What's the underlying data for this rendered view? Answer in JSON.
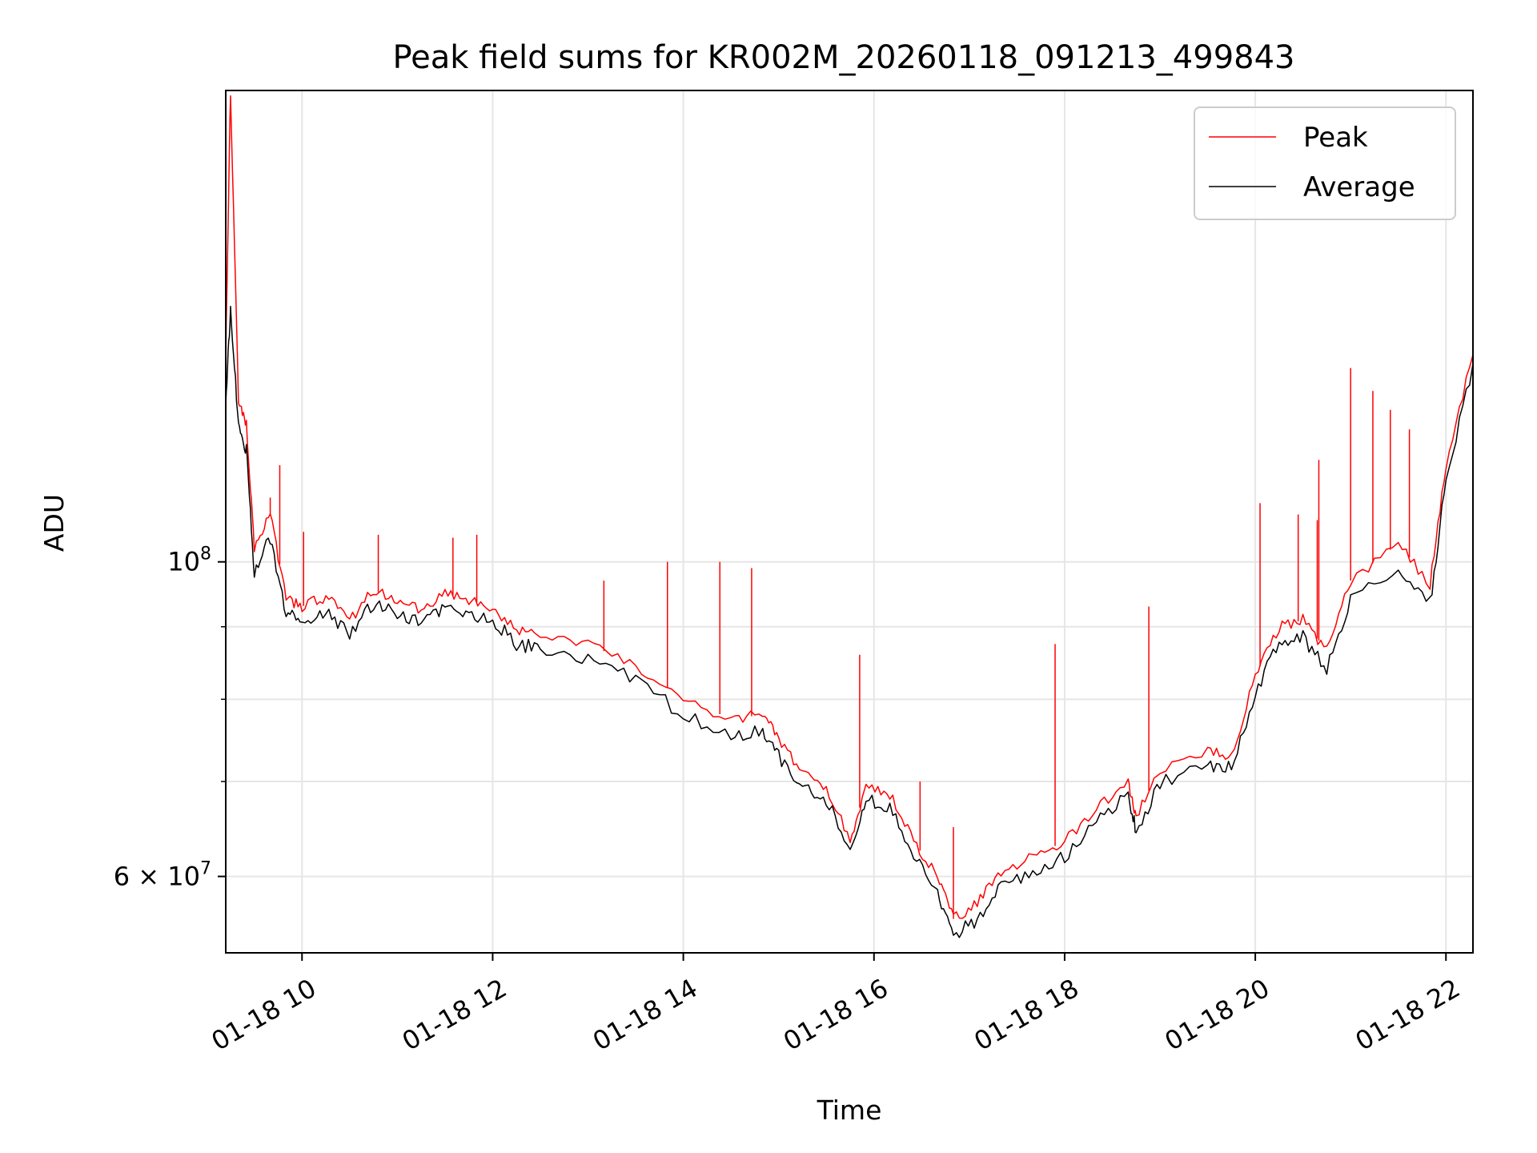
{
  "chart_data": {
    "type": "line",
    "title": "Peak field sums for KR002M_20260118_091213_499843",
    "xlabel": "Time",
    "ylabel": "ADU",
    "y_scale": "log",
    "grid": true,
    "legend_position": "top-right",
    "x_range": [
      "2026-01-18 09:12",
      "2026-01-18 22:17"
    ],
    "ylim": [
      53000000,
      215000000
    ],
    "x_ticks": [
      {
        "time": "2026-01-18 10:00",
        "label": "01-18 10"
      },
      {
        "time": "2026-01-18 12:00",
        "label": "01-18 12"
      },
      {
        "time": "2026-01-18 14:00",
        "label": "01-18 14"
      },
      {
        "time": "2026-01-18 16:00",
        "label": "01-18 16"
      },
      {
        "time": "2026-01-18 18:00",
        "label": "01-18 18"
      },
      {
        "time": "2026-01-18 20:00",
        "label": "01-18 20"
      },
      {
        "time": "2026-01-18 22:00",
        "label": "01-18 22"
      }
    ],
    "y_ticks": [
      {
        "value": 100000000,
        "base": "10",
        "exp": "8"
      },
      {
        "value": 60000000,
        "base": "6 × 10",
        "exp": "7"
      }
    ],
    "y_minor_ticks": [
      70000000,
      80000000,
      90000000
    ],
    "series": [
      {
        "name": "Peak",
        "color": "#ff0000",
        "points": [
          [
            "2026-01-18 09:12",
            140000000
          ],
          [
            "2026-01-18 09:15",
            215000000
          ],
          [
            "2026-01-18 09:20",
            130000000
          ],
          [
            "2026-01-18 09:25",
            125000000
          ],
          [
            "2026-01-18 09:30",
            102000000
          ],
          [
            "2026-01-18 09:40",
            108000000
          ],
          [
            "2026-01-18 09:50",
            94000000
          ],
          [
            "2026-01-18 10:00",
            93000000
          ],
          [
            "2026-01-18 10:15",
            94500000
          ],
          [
            "2026-01-18 10:30",
            91000000
          ],
          [
            "2026-01-18 10:45",
            95500000
          ],
          [
            "2026-01-18 11:00",
            94000000
          ],
          [
            "2026-01-18 11:15",
            92500000
          ],
          [
            "2026-01-18 11:30",
            95000000
          ],
          [
            "2026-01-18 11:45",
            94000000
          ],
          [
            "2026-01-18 12:00",
            93000000
          ],
          [
            "2026-01-18 12:15",
            89500000
          ],
          [
            "2026-01-18 12:30",
            89000000
          ],
          [
            "2026-01-18 13:00",
            87500000
          ],
          [
            "2026-01-18 13:30",
            84500000
          ],
          [
            "2026-01-18 14:00",
            80000000
          ],
          [
            "2026-01-18 14:30",
            77500000
          ],
          [
            "2026-01-18 14:50",
            78000000
          ],
          [
            "2026-01-18 15:00",
            75000000
          ],
          [
            "2026-01-18 15:15",
            71000000
          ],
          [
            "2026-01-18 15:30",
            69500000
          ],
          [
            "2026-01-18 15:45",
            63500000
          ],
          [
            "2026-01-18 15:55",
            69500000
          ],
          [
            "2026-01-18 16:10",
            68500000
          ],
          [
            "2026-01-18 16:25",
            63500000
          ],
          [
            "2026-01-18 16:40",
            60000000
          ],
          [
            "2026-01-18 16:50",
            56000000
          ],
          [
            "2026-01-18 17:05",
            57500000
          ],
          [
            "2026-01-18 17:20",
            60500000
          ],
          [
            "2026-01-18 17:40",
            62000000
          ],
          [
            "2026-01-18 18:00",
            63500000
          ],
          [
            "2026-01-18 18:20",
            67000000
          ],
          [
            "2026-01-18 18:40",
            70000000
          ],
          [
            "2026-01-18 18:45",
            66000000
          ],
          [
            "2026-01-18 19:00",
            71500000
          ],
          [
            "2026-01-18 19:30",
            73500000
          ],
          [
            "2026-01-18 19:45",
            73000000
          ],
          [
            "2026-01-18 20:00",
            83000000
          ],
          [
            "2026-01-18 20:15",
            90000000
          ],
          [
            "2026-01-18 20:30",
            91000000
          ],
          [
            "2026-01-18 20:45",
            86500000
          ],
          [
            "2026-01-18 21:00",
            97000000
          ],
          [
            "2026-01-18 21:30",
            103000000
          ],
          [
            "2026-01-18 21:50",
            96500000
          ],
          [
            "2026-01-18 22:00",
            117000000
          ],
          [
            "2026-01-18 22:17",
            140000000
          ]
        ]
      },
      {
        "name": "Average",
        "color": "#000000",
        "points": [
          [
            "2026-01-18 09:12",
            130000000
          ],
          [
            "2026-01-18 09:15",
            150000000
          ],
          [
            "2026-01-18 09:20",
            125000000
          ],
          [
            "2026-01-18 09:25",
            120000000
          ],
          [
            "2026-01-18 09:30",
            98000000
          ],
          [
            "2026-01-18 09:40",
            104000000
          ],
          [
            "2026-01-18 09:50",
            92000000
          ],
          [
            "2026-01-18 10:00",
            91000000
          ],
          [
            "2026-01-18 10:15",
            92500000
          ],
          [
            "2026-01-18 10:30",
            89000000
          ],
          [
            "2026-01-18 10:45",
            93500000
          ],
          [
            "2026-01-18 11:00",
            92000000
          ],
          [
            "2026-01-18 11:15",
            90500000
          ],
          [
            "2026-01-18 11:30",
            93000000
          ],
          [
            "2026-01-18 11:45",
            92000000
          ],
          [
            "2026-01-18 12:00",
            91000000
          ],
          [
            "2026-01-18 12:15",
            87500000
          ],
          [
            "2026-01-18 12:30",
            87000000
          ],
          [
            "2026-01-18 13:00",
            85500000
          ],
          [
            "2026-01-18 13:30",
            82500000
          ],
          [
            "2026-01-18 14:00",
            78000000
          ],
          [
            "2026-01-18 14:30",
            75500000
          ],
          [
            "2026-01-18 14:50",
            76000000
          ],
          [
            "2026-01-18 15:00",
            73000000
          ],
          [
            "2026-01-18 15:15",
            69500000
          ],
          [
            "2026-01-18 15:30",
            68000000
          ],
          [
            "2026-01-18 15:45",
            62500000
          ],
          [
            "2026-01-18 15:55",
            68000000
          ],
          [
            "2026-01-18 16:10",
            67000000
          ],
          [
            "2026-01-18 16:25",
            62000000
          ],
          [
            "2026-01-18 16:40",
            58500000
          ],
          [
            "2026-01-18 16:50",
            54500000
          ],
          [
            "2026-01-18 17:05",
            56000000
          ],
          [
            "2026-01-18 17:20",
            59000000
          ],
          [
            "2026-01-18 17:40",
            60500000
          ],
          [
            "2026-01-18 18:00",
            62000000
          ],
          [
            "2026-01-18 18:20",
            65500000
          ],
          [
            "2026-01-18 18:40",
            68500000
          ],
          [
            "2026-01-18 18:45",
            64500000
          ],
          [
            "2026-01-18 19:00",
            70000000
          ],
          [
            "2026-01-18 19:30",
            72000000
          ],
          [
            "2026-01-18 19:45",
            71500000
          ],
          [
            "2026-01-18 20:00",
            81000000
          ],
          [
            "2026-01-18 20:15",
            87500000
          ],
          [
            "2026-01-18 20:30",
            88500000
          ],
          [
            "2026-01-18 20:45",
            84000000
          ],
          [
            "2026-01-18 21:00",
            94000000
          ],
          [
            "2026-01-18 21:30",
            99000000
          ],
          [
            "2026-01-18 21:50",
            93500000
          ],
          [
            "2026-01-18 22:00",
            114000000
          ],
          [
            "2026-01-18 22:17",
            138000000
          ]
        ]
      }
    ],
    "peak_spikes": [
      [
        "2026-01-18 09:40",
        111000000
      ],
      [
        "2026-01-18 09:46",
        117000000
      ],
      [
        "2026-01-18 10:01",
        105000000
      ],
      [
        "2026-01-18 10:48",
        104500000
      ],
      [
        "2026-01-18 11:35",
        104000000
      ],
      [
        "2026-01-18 11:50",
        104500000
      ],
      [
        "2026-01-18 13:10",
        97000000
      ],
      [
        "2026-01-18 13:50",
        100000000
      ],
      [
        "2026-01-18 14:23",
        100000000
      ],
      [
        "2026-01-18 14:43",
        99000000
      ],
      [
        "2026-01-18 15:51",
        86000000
      ],
      [
        "2026-01-18 16:29",
        70000000
      ],
      [
        "2026-01-18 16:50",
        65000000
      ],
      [
        "2026-01-18 17:54",
        87500000
      ],
      [
        "2026-01-18 18:53",
        93000000
      ],
      [
        "2026-01-18 20:03",
        110000000
      ],
      [
        "2026-01-18 20:27",
        108000000
      ],
      [
        "2026-01-18 20:39",
        107000000
      ],
      [
        "2026-01-18 20:40",
        118000000
      ],
      [
        "2026-01-18 21:00",
        137000000
      ],
      [
        "2026-01-18 21:14",
        132000000
      ],
      [
        "2026-01-18 21:25",
        128000000
      ],
      [
        "2026-01-18 21:37",
        124000000
      ]
    ]
  }
}
